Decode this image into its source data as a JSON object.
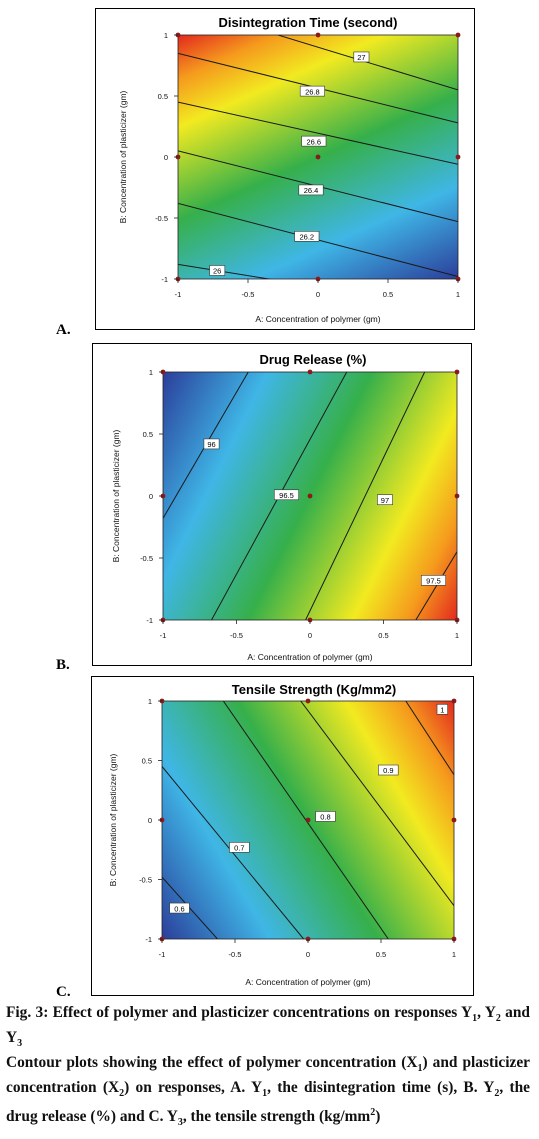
{
  "panels": [
    {
      "letter": "A.",
      "chart_data": {
        "type": "contour",
        "title": "Disintegration Time (second)",
        "xlabel": "A: Concentration of polymer (gm)",
        "ylabel": "B: Concentration of plasticizer (gm)",
        "xlim": [
          -1,
          1
        ],
        "ylim": [
          -1,
          1
        ],
        "xticks": [
          "-1",
          "-0.5",
          "0",
          "0.5",
          "1"
        ],
        "yticks": [
          "-1",
          "-0.5",
          "0",
          "0.5",
          "1"
        ],
        "colormap": "blue-green-yellow-red",
        "contours": [
          {
            "label": "26",
            "points": [
              [
                -1,
                -0.88
              ],
              [
                1,
                -1.25
              ]
            ],
            "label_at": [
              -0.72,
              -0.93
            ]
          },
          {
            "label": "26.2",
            "points": [
              [
                -1,
                -0.38
              ],
              [
                1,
                -0.98
              ]
            ],
            "label_at": [
              -0.08,
              -0.65
            ]
          },
          {
            "label": "26.4",
            "points": [
              [
                -1,
                0.05
              ],
              [
                1,
                -0.53
              ]
            ],
            "label_at": [
              -0.05,
              -0.27
            ]
          },
          {
            "label": "26.6",
            "points": [
              [
                -1,
                0.45
              ],
              [
                1,
                -0.06
              ]
            ],
            "label_at": [
              -0.03,
              0.13
            ]
          },
          {
            "label": "26.8",
            "points": [
              [
                -1,
                0.85
              ],
              [
                1,
                0.28
              ]
            ],
            "label_at": [
              -0.04,
              0.54
            ]
          },
          {
            "label": "27",
            "points": [
              [
                -1,
                1.25
              ],
              [
                1,
                0.55
              ]
            ],
            "label_at": [
              0.31,
              0.82
            ]
          }
        ],
        "design_points": [
          [
            -1,
            -1
          ],
          [
            0,
            -1
          ],
          [
            1,
            -1
          ],
          [
            -1,
            0
          ],
          [
            0,
            0
          ],
          [
            1,
            0
          ],
          [
            -1,
            1
          ],
          [
            0,
            1
          ],
          [
            1,
            1
          ]
        ]
      }
    },
    {
      "letter": "B.",
      "chart_data": {
        "type": "contour",
        "title": "Drug Release (%)",
        "xlabel": "A: Concentration of polymer (gm)",
        "ylabel": "B: Concentration of plasticizer (gm)",
        "xlim": [
          -1,
          1
        ],
        "ylim": [
          -1,
          1
        ],
        "xticks": [
          "-1",
          "-0.5",
          "0",
          "0.5",
          "1"
        ],
        "yticks": [
          "-1",
          "-0.5",
          "0",
          "0.5",
          "1"
        ],
        "colormap": "blue-green-yellow-red",
        "contours": [
          {
            "label": "96",
            "points": [
              [
                -1,
                -0.18
              ],
              [
                -0.42,
                1
              ]
            ],
            "label_at": [
              -0.67,
              0.42
            ]
          },
          {
            "label": "96.5",
            "points": [
              [
                -0.67,
                -1
              ],
              [
                0.25,
                1
              ]
            ],
            "label_at": [
              -0.16,
              0.01
            ]
          },
          {
            "label": "97",
            "points": [
              [
                -0.03,
                -1
              ],
              [
                0.78,
                1
              ]
            ],
            "label_at": [
              0.51,
              -0.03
            ]
          },
          {
            "label": "97.5",
            "points": [
              [
                0.72,
                -1
              ],
              [
                1,
                -0.45
              ]
            ],
            "label_at": [
              0.84,
              -0.68
            ]
          }
        ],
        "design_points": [
          [
            -1,
            -1
          ],
          [
            0,
            -1
          ],
          [
            1,
            -1
          ],
          [
            -1,
            0
          ],
          [
            0,
            0
          ],
          [
            1,
            0
          ],
          [
            -1,
            1
          ],
          [
            0,
            1
          ],
          [
            1,
            1
          ]
        ]
      }
    },
    {
      "letter": "C.",
      "chart_data": {
        "type": "contour",
        "title": "Tensile Strength (Kg/mm2)",
        "xlabel": "A: Concentration of polymer (gm)",
        "ylabel": "B: Concentration of plasticizer (gm)",
        "xlim": [
          -1,
          1
        ],
        "ylim": [
          -1,
          1
        ],
        "xticks": [
          "-1",
          "-0.5",
          "0",
          "0.5",
          "1"
        ],
        "yticks": [
          "-1",
          "-0.5",
          "0",
          "0.5",
          "1"
        ],
        "colormap": "blue-green-yellow-red",
        "contours": [
          {
            "label": "0.6",
            "points": [
              [
                -1,
                -0.48
              ],
              [
                -0.62,
                -1
              ]
            ],
            "label_at": [
              -0.88,
              -0.74
            ]
          },
          {
            "label": "0.7",
            "points": [
              [
                -1,
                0.45
              ],
              [
                -0.03,
                -1
              ]
            ],
            "label_at": [
              -0.47,
              -0.23
            ]
          },
          {
            "label": "0.8",
            "points": [
              [
                -0.58,
                1
              ],
              [
                0.55,
                -1
              ]
            ],
            "label_at": [
              0.12,
              0.03
            ]
          },
          {
            "label": "0.9",
            "points": [
              [
                -0.05,
                1
              ],
              [
                1,
                -0.72
              ]
            ],
            "label_at": [
              0.55,
              0.42
            ]
          },
          {
            "label": "1",
            "points": [
              [
                0.67,
                1
              ],
              [
                1,
                0.38
              ]
            ],
            "label_at": [
              0.92,
              0.93
            ]
          }
        ],
        "design_points": [
          [
            -1,
            -1
          ],
          [
            0,
            -1
          ],
          [
            1,
            -1
          ],
          [
            -1,
            0
          ],
          [
            0,
            0
          ],
          [
            1,
            0
          ],
          [
            -1,
            1
          ],
          [
            0,
            1
          ],
          [
            1,
            1
          ]
        ]
      }
    }
  ],
  "caption": {
    "fig_title_prefix": "Fig. 3: Effect of polymer and plasticizer concentrations on responses Y",
    "fig_title_s1": "1",
    "fig_title_mid1": ", Y",
    "fig_title_s2": "2",
    "fig_title_mid2": " and Y",
    "fig_title_s3": "3",
    "body_a": "Contour plots showing the effect of polymer concentration (X",
    "body_s1": "1",
    "body_b": ") and plasticizer concentration (X",
    "body_s2": "2",
    "body_c": ") on responses, A. Y",
    "body_s3": "1",
    "body_d": ", the disintegration time (s), B. Y",
    "body_s4": "2",
    "body_e": ", the drug release (%) and C. Y",
    "body_s5": "3",
    "body_f": ", the tensile strength (kg/mm",
    "body_sup": "2",
    "body_g": ")"
  },
  "colors": {
    "blue": "#2b3e9a",
    "cyan": "#3fb6e6",
    "green": "#36b04a",
    "yellow": "#f2ea20",
    "orange": "#f59a1d",
    "red": "#e3281f"
  }
}
